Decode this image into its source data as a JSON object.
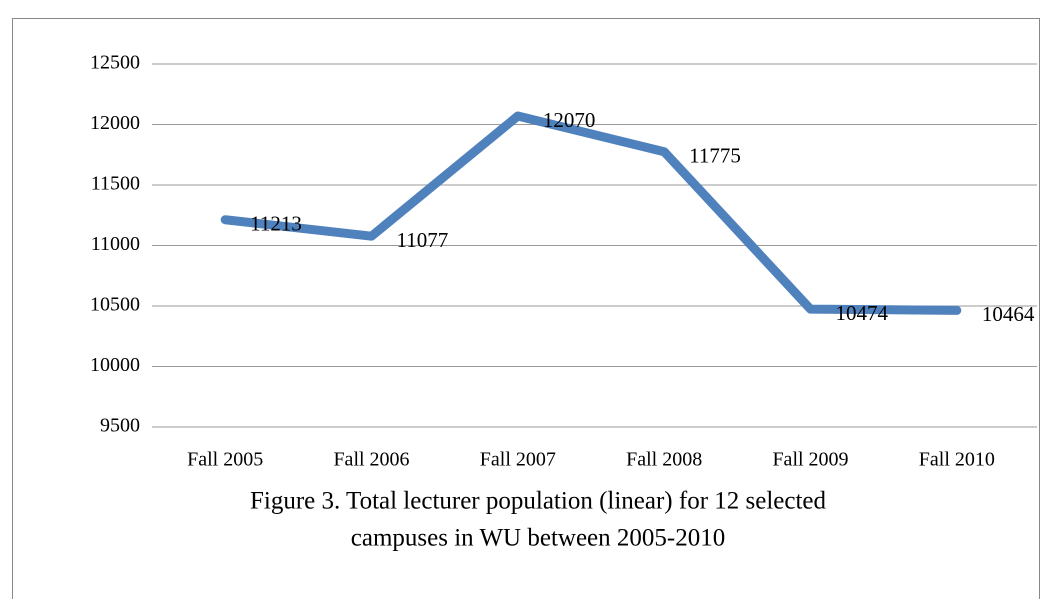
{
  "chart_data": {
    "type": "line",
    "title": [
      "Figure 3. Total lecturer population (linear) for 12 selected",
      "campuses in WU between 2005-2010"
    ],
    "categories": [
      "Fall 2005",
      "Fall 2006",
      "Fall 2007",
      "Fall 2008",
      "Fall 2009",
      "Fall 2010"
    ],
    "series": [
      {
        "name": "Total lecturer population",
        "color": "#4f81bd",
        "values": [
          11213,
          11077,
          12070,
          11775,
          10474,
          10464
        ]
      }
    ],
    "ylim": [
      9500,
      12500
    ],
    "yticks": [
      9500,
      10000,
      10500,
      11000,
      11500,
      12000,
      12500
    ],
    "grid": true
  }
}
